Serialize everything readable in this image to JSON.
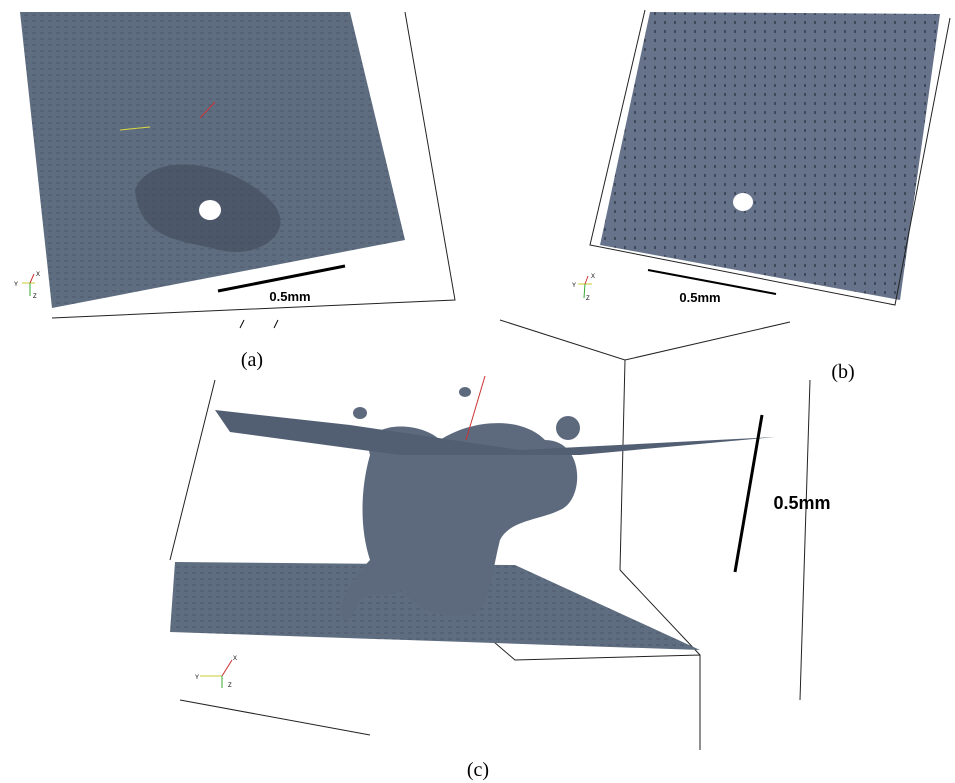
{
  "panels": [
    {
      "label": "(a)",
      "scale_bar": "0.5mm",
      "axes": [
        "Y",
        "X",
        "Z"
      ]
    },
    {
      "label": "(b)",
      "scale_bar": "0.5mm",
      "axes": [
        "Y",
        "X",
        "Z"
      ]
    },
    {
      "label": "(c)",
      "scale_bar": "0.5mm",
      "axes": [
        "Y",
        "X",
        "Z"
      ]
    }
  ]
}
